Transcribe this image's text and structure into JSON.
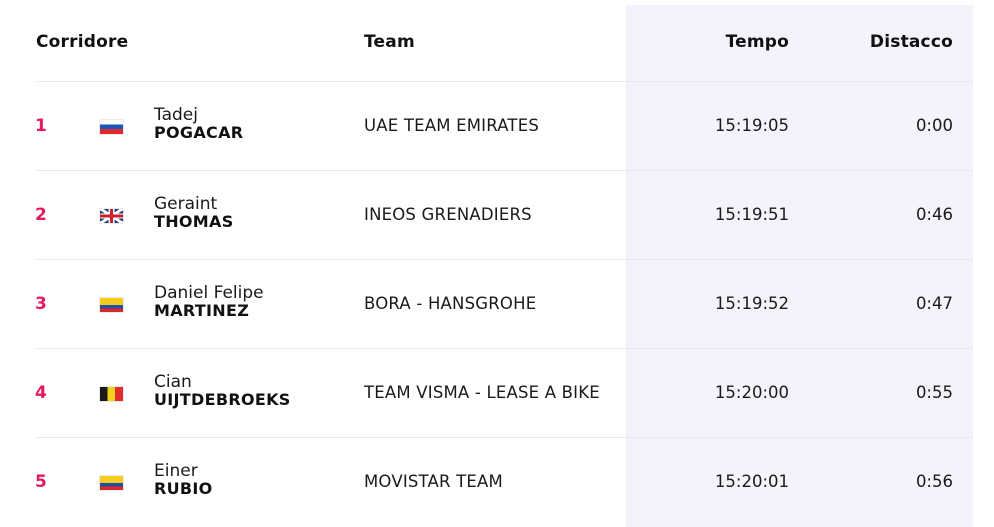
{
  "header": {
    "rider": "Corridore",
    "team": "Team",
    "time": "Tempo",
    "gap": "Distacco"
  },
  "rows": [
    {
      "rank": "1",
      "flag": "slovenia-flag-icon",
      "first_name": "Tadej",
      "last_name": "POGACAR",
      "team": "UAE TEAM EMIRATES",
      "time": "15:19:05",
      "gap": "0:00"
    },
    {
      "rank": "2",
      "flag": "great-britain-flag-icon",
      "first_name": "Geraint",
      "last_name": "THOMAS",
      "team": "INEOS GRENADIERS",
      "time": "15:19:51",
      "gap": "0:46"
    },
    {
      "rank": "3",
      "flag": "colombia-flag-icon",
      "first_name": "Daniel Felipe",
      "last_name": "MARTINEZ",
      "team": "BORA - HANSGROHE",
      "time": "15:19:52",
      "gap": "0:47"
    },
    {
      "rank": "4",
      "flag": "belgium-flag-icon",
      "first_name": "Cian",
      "last_name": "UIJTDEBROEKS",
      "team": "TEAM VISMA - LEASE A BIKE",
      "time": "15:20:00",
      "gap": "0:55"
    },
    {
      "rank": "5",
      "flag": "colombia-flag-icon",
      "first_name": "Einer",
      "last_name": "RUBIO",
      "team": "MOVISTAR TEAM",
      "time": "15:20:01",
      "gap": "0:56"
    }
  ],
  "colors": {
    "rank": "#e5195f",
    "time_column_bg": "#f4f3fb",
    "divider": "#e8e6f2"
  }
}
